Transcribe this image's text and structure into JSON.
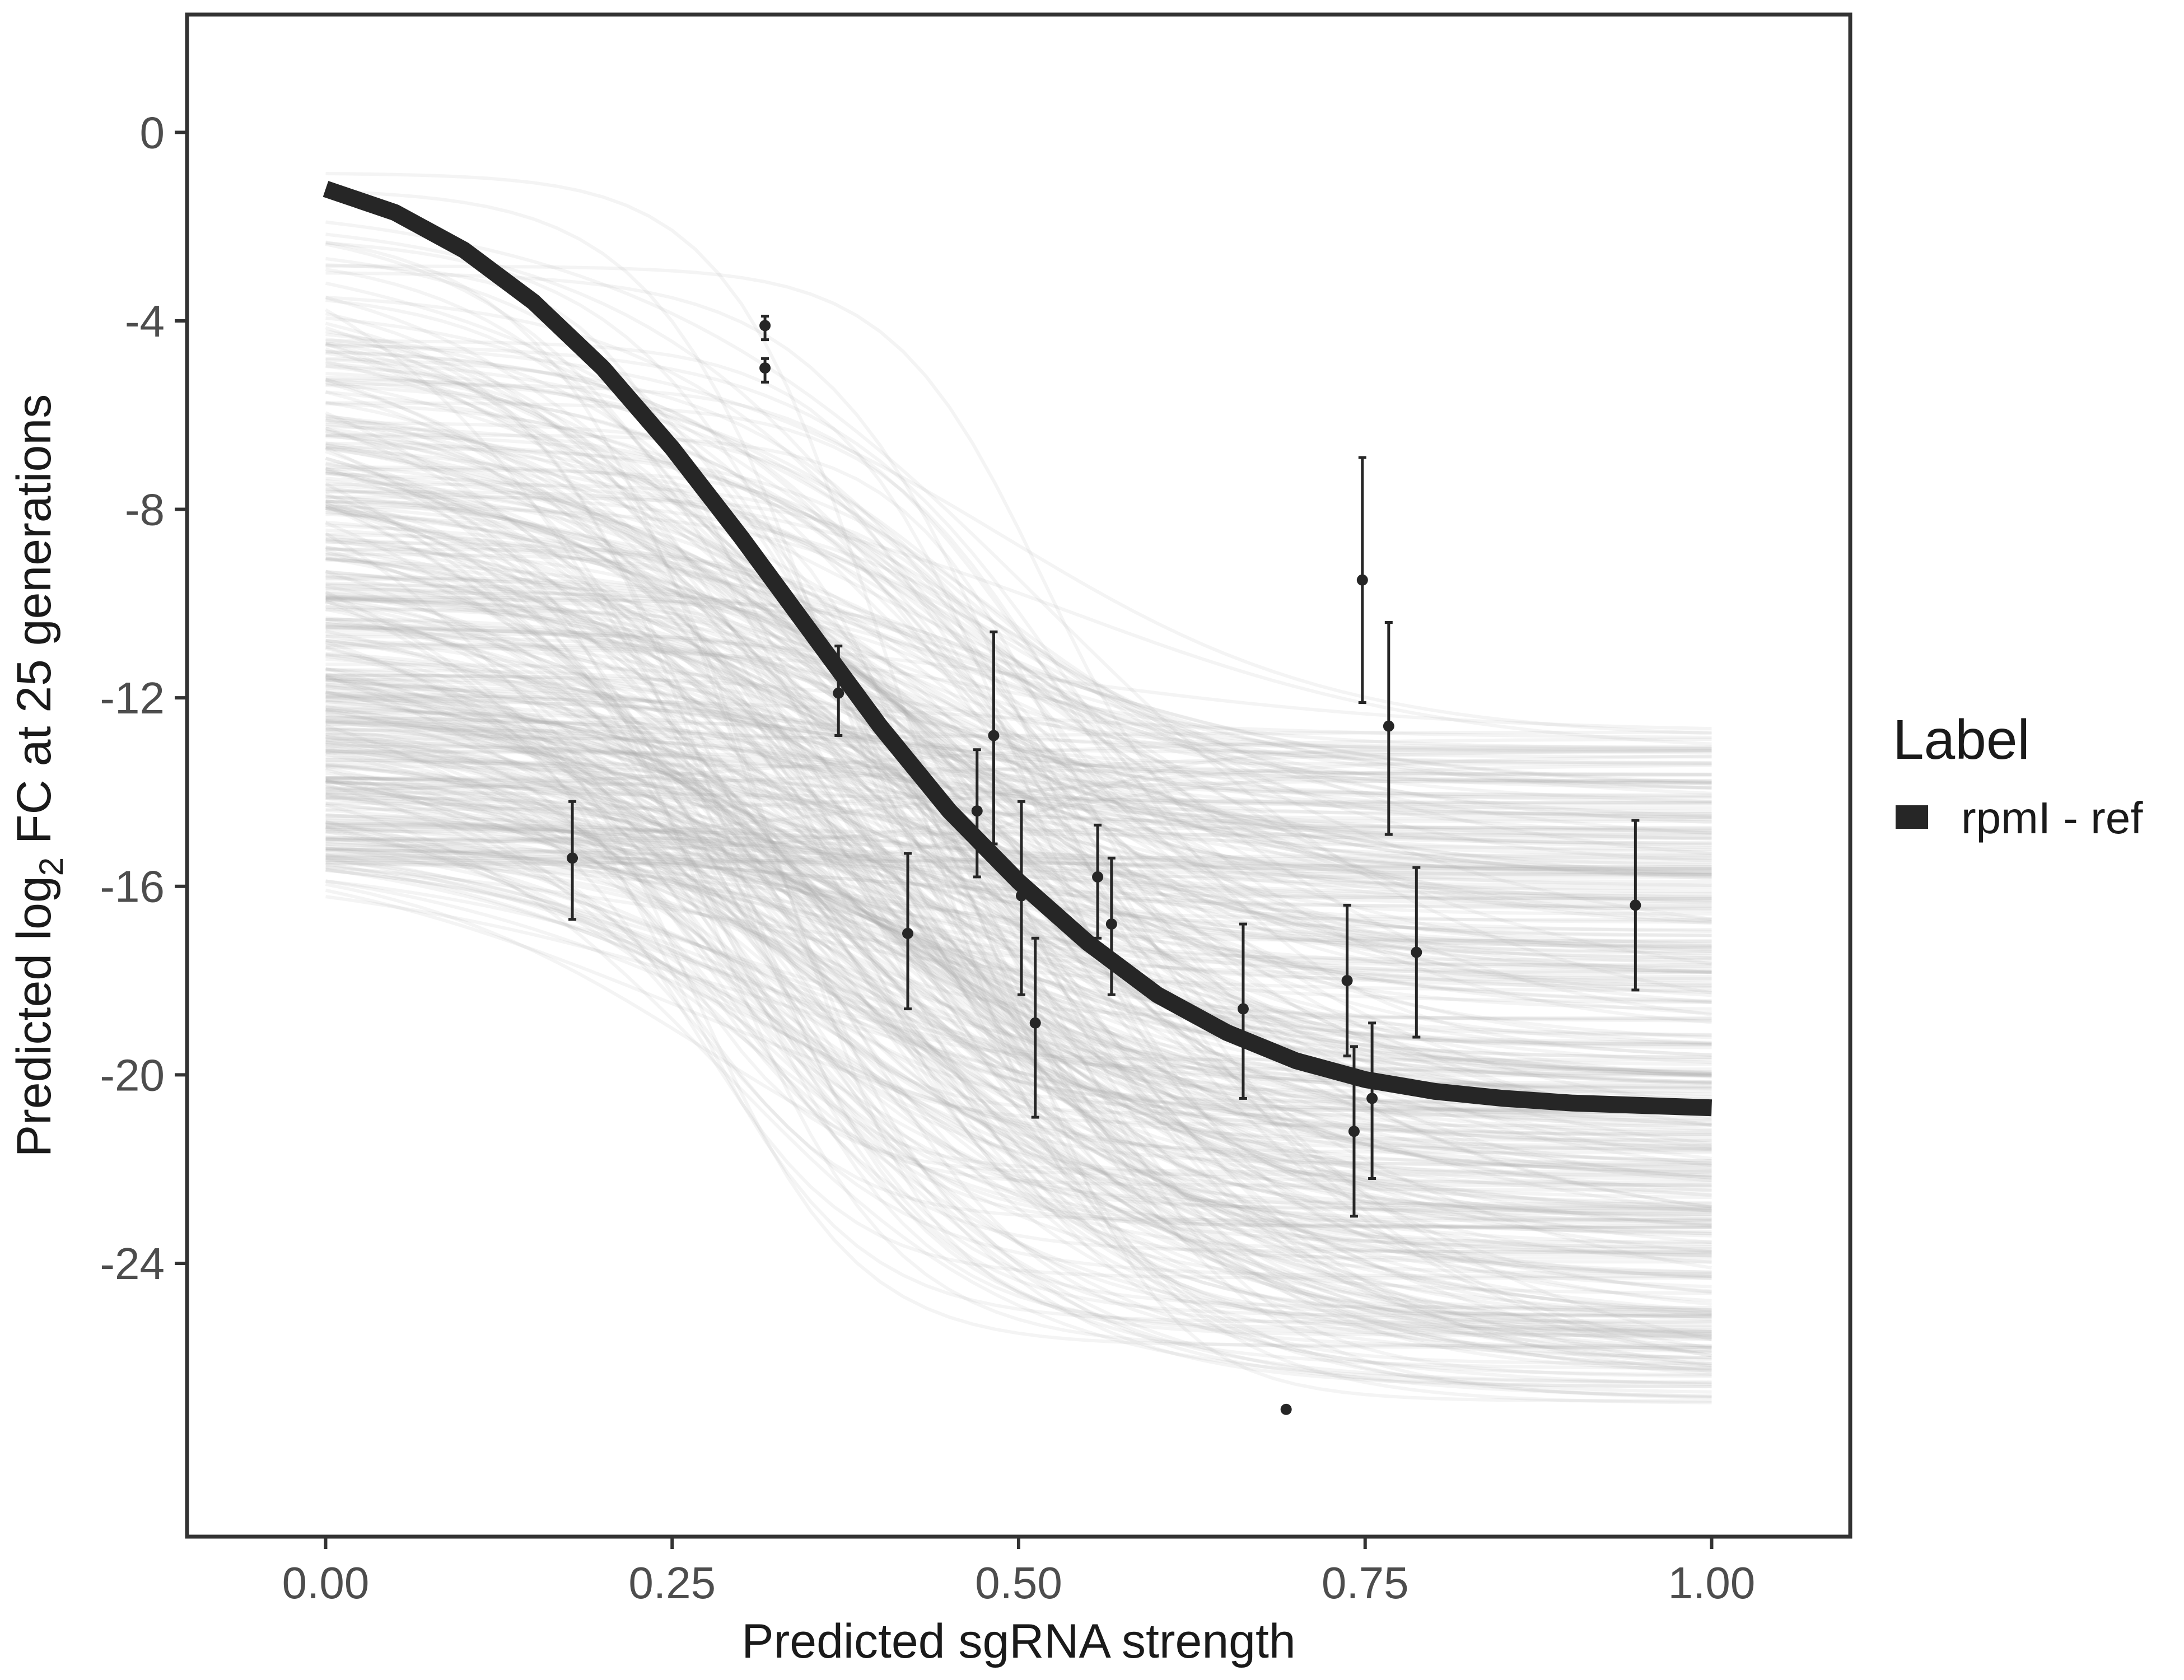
{
  "chart_data": {
    "type": "line",
    "xlabel": "Predicted sgRNA strength",
    "ylabel_prefix": "Predicted  log",
    "ylabel_subscript": "2",
    "ylabel_suffix": " FC at 25 generations",
    "xlim": [
      -0.1,
      1.1
    ],
    "ylim": [
      -29.8,
      2.5
    ],
    "x_ticks": [
      0.0,
      0.25,
      0.5,
      0.75,
      1.0
    ],
    "x_tick_labels": [
      "0.00",
      "0.25",
      "0.50",
      "0.75",
      "1.00"
    ],
    "y_ticks": [
      0,
      -4,
      -8,
      -12,
      -16,
      -20,
      -24
    ],
    "y_tick_labels": [
      "0",
      "-4",
      "-8",
      "-12",
      "-16",
      "-20",
      "-24"
    ],
    "grid": false,
    "legend": {
      "title": "Label",
      "position": "right",
      "entries": [
        {
          "label": "rpmI - ref",
          "color": "#262626"
        }
      ]
    },
    "fit_curve": {
      "name": "rpmI - ref",
      "color": "#262626",
      "x": [
        0.0,
        0.05,
        0.1,
        0.15,
        0.2,
        0.25,
        0.3,
        0.35,
        0.4,
        0.45,
        0.5,
        0.55,
        0.6,
        0.65,
        0.7,
        0.75,
        0.8,
        0.85,
        0.9,
        0.95,
        1.0
      ],
      "y": [
        -1.2,
        -1.7,
        -2.5,
        -3.6,
        -5.0,
        -6.7,
        -8.6,
        -10.6,
        -12.6,
        -14.4,
        -15.9,
        -17.2,
        -18.3,
        -19.1,
        -19.7,
        -20.1,
        -20.35,
        -20.5,
        -20.6,
        -20.65,
        -20.7
      ]
    },
    "posterior_draws": {
      "color": "#a9a9a9",
      "count": 420,
      "upper_asymptote_range": [
        -15.6,
        -0.5
      ],
      "lower_asymptote_range": [
        -27.0,
        -12.6
      ],
      "midpoint_range": [
        0.25,
        0.55
      ]
    },
    "points": [
      {
        "x": 0.178,
        "y": -15.4,
        "lo": -16.7,
        "hi": -14.2
      },
      {
        "x": 0.317,
        "y": -4.1,
        "lo": -4.4,
        "hi": -3.9
      },
      {
        "x": 0.317,
        "y": -5.0,
        "lo": -5.3,
        "hi": -4.8
      },
      {
        "x": 0.37,
        "y": -11.9,
        "lo": -12.8,
        "hi": -10.9
      },
      {
        "x": 0.42,
        "y": -17.0,
        "lo": -18.6,
        "hi": -15.3
      },
      {
        "x": 0.47,
        "y": -14.4,
        "lo": -15.8,
        "hi": -13.1
      },
      {
        "x": 0.482,
        "y": -12.8,
        "lo": -15.1,
        "hi": -10.6
      },
      {
        "x": 0.502,
        "y": -16.2,
        "lo": -18.3,
        "hi": -14.2
      },
      {
        "x": 0.512,
        "y": -18.9,
        "lo": -20.9,
        "hi": -17.1
      },
      {
        "x": 0.557,
        "y": -15.8,
        "lo": -17.1,
        "hi": -14.7
      },
      {
        "x": 0.567,
        "y": -16.8,
        "lo": -18.3,
        "hi": -15.4
      },
      {
        "x": 0.662,
        "y": -18.6,
        "lo": -20.5,
        "hi": -16.8
      },
      {
        "x": 0.693,
        "y": -27.1,
        "lo": null,
        "hi": null
      },
      {
        "x": 0.737,
        "y": -18.0,
        "lo": -19.6,
        "hi": -16.4
      },
      {
        "x": 0.742,
        "y": -21.2,
        "lo": -23.0,
        "hi": -19.4
      },
      {
        "x": 0.748,
        "y": -9.5,
        "lo": -12.1,
        "hi": -6.9
      },
      {
        "x": 0.755,
        "y": -20.5,
        "lo": -22.2,
        "hi": -18.9
      },
      {
        "x": 0.767,
        "y": -12.6,
        "lo": -14.9,
        "hi": -10.4
      },
      {
        "x": 0.787,
        "y": -17.4,
        "lo": -19.2,
        "hi": -15.6
      },
      {
        "x": 0.945,
        "y": -16.4,
        "lo": -18.2,
        "hi": -14.6
      }
    ]
  }
}
